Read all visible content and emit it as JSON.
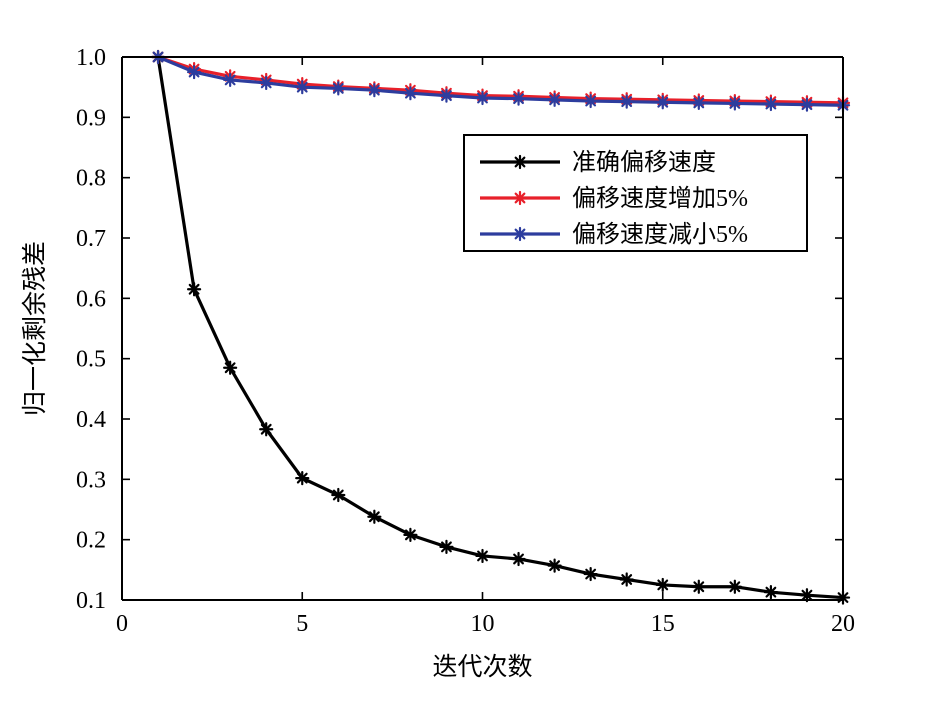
{
  "chart_data": {
    "type": "line",
    "title": "",
    "xlabel": "迭代次数",
    "ylabel": "归一化剩余残差",
    "xlim": [
      0,
      20
    ],
    "ylim": [
      0.1,
      1.0
    ],
    "x_ticks": [
      0,
      5,
      10,
      15,
      20
    ],
    "y_ticks": [
      0.1,
      0.2,
      0.3,
      0.4,
      0.5,
      0.6,
      0.7,
      0.8,
      0.9,
      1.0
    ],
    "x_tick_labels": [
      "0",
      "5",
      "10",
      "15",
      "20"
    ],
    "y_tick_labels": [
      "0.1",
      "0.2",
      "0.3",
      "0.4",
      "0.5",
      "0.6",
      "0.7",
      "0.8",
      "0.9",
      "1.0"
    ],
    "grid": false,
    "legend_position": "upper-right",
    "x": [
      1,
      2,
      3,
      4,
      5,
      6,
      7,
      8,
      9,
      10,
      11,
      12,
      13,
      14,
      15,
      16,
      17,
      18,
      19,
      20
    ],
    "series": [
      {
        "name": "准确偏移速度",
        "color": "#000000",
        "marker": "asterisk",
        "values": [
          1.0,
          0.615,
          0.485,
          0.383,
          0.302,
          0.274,
          0.238,
          0.208,
          0.188,
          0.173,
          0.168,
          0.157,
          0.143,
          0.134,
          0.125,
          0.122,
          0.122,
          0.113,
          0.108,
          0.104
        ]
      },
      {
        "name": "偏移速度增加5%",
        "color": "#e8202a",
        "marker": "asterisk",
        "values": [
          1.0,
          0.98,
          0.968,
          0.962,
          0.955,
          0.951,
          0.948,
          0.945,
          0.94,
          0.936,
          0.935,
          0.933,
          0.931,
          0.93,
          0.929,
          0.928,
          0.927,
          0.926,
          0.925,
          0.924
        ]
      },
      {
        "name": "偏移速度减小5%",
        "color": "#2d3d9e",
        "marker": "asterisk",
        "values": [
          1.0,
          0.975,
          0.962,
          0.957,
          0.95,
          0.948,
          0.945,
          0.94,
          0.936,
          0.932,
          0.931,
          0.929,
          0.927,
          0.926,
          0.925,
          0.924,
          0.923,
          0.922,
          0.921,
          0.92
        ]
      }
    ]
  }
}
